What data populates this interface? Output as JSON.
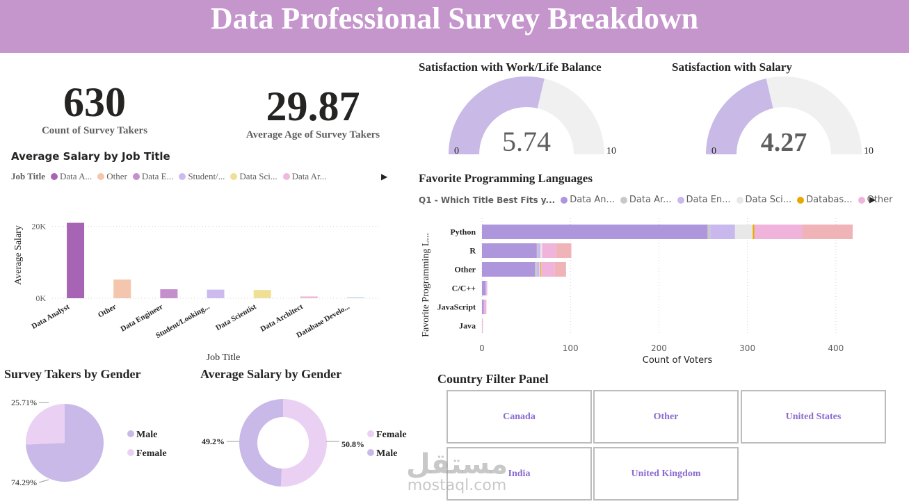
{
  "header": {
    "title": "Data Professional Survey Breakdown"
  },
  "kpis": {
    "count": {
      "value": "630",
      "label": "Count of Survey Takers"
    },
    "age": {
      "value": "29.87",
      "label": "Average Age of Survey Takers"
    }
  },
  "gauges": [
    {
      "title": "Satisfaction with Work/Life Balance",
      "value": 5.74,
      "value_label": "5.74",
      "min": "0",
      "max": "10",
      "fill_fraction": 0.574,
      "fill_color": "#c8b9e6",
      "track_color": "#f0f0f0"
    },
    {
      "title": "Satisfaction with Salary",
      "value": 4.27,
      "value_label": "4.27",
      "min": "0",
      "max": "10",
      "fill_fraction": 0.427,
      "fill_color": "#c8b9e6",
      "track_color": "#f0f0f0"
    }
  ],
  "salary_by_job": {
    "title": "Average Salary by Job Title",
    "legend_title": "Job Title",
    "legend": [
      {
        "label": "Data A...",
        "color": "#a864b4"
      },
      {
        "label": "Other",
        "color": "#f4c6ae"
      },
      {
        "label": "Data E...",
        "color": "#c490cc"
      },
      {
        "label": "Student/...",
        "color": "#cdbbee"
      },
      {
        "label": "Data Sci...",
        "color": "#f0e096"
      },
      {
        "label": "Data Ar...",
        "color": "#f0b8dc"
      }
    ],
    "arrow": "▶"
  },
  "languages": {
    "title": "Favorite Programming Languages",
    "legend_title": "Q1 - Which Title Best Fits y...",
    "legend": [
      {
        "label": "Data An...",
        "color": "#ad96dc"
      },
      {
        "label": "Data Ar...",
        "color": "#c8c8c8"
      },
      {
        "label": "Data En...",
        "color": "#c9b8ee"
      },
      {
        "label": "Data Sci...",
        "color": "#e8e8e8"
      },
      {
        "label": "Databas...",
        "color": "#e8a800"
      },
      {
        "label": "Other",
        "color": "#f0b4dc"
      }
    ],
    "arrow": "▶"
  },
  "gender_count": {
    "title": "Survey Takers by Gender",
    "legend": [
      {
        "label": "Male",
        "color": "#c9b9e8"
      },
      {
        "label": "Female",
        "color": "#ead0f2"
      }
    ]
  },
  "gender_salary": {
    "title": "Average Salary by Gender",
    "legend": [
      {
        "label": "Female",
        "color": "#ead0f2"
      },
      {
        "label": "Male",
        "color": "#c9b9e8"
      }
    ]
  },
  "country_panel": {
    "title": "Country Filter Panel",
    "tiles": [
      "Canada",
      "Other",
      "United States",
      "India",
      "United Kingdom"
    ]
  },
  "watermark": {
    "arabic": "مستقل",
    "latin": "mostaql.com"
  },
  "chart_data": [
    {
      "type": "bar",
      "title": "",
      "xlabel": "Job Title",
      "ylabel": "Average Salary",
      "categories": [
        "Data Analyst",
        "Other",
        "Data Engineer",
        "Student/Looking...",
        "Data Scientist",
        "Data Architect",
        "Database Develo..."
      ],
      "values": [
        21000,
        5200,
        2500,
        2400,
        2300,
        500,
        300
      ],
      "colors": [
        "#a864b4",
        "#f4c6ae",
        "#c490cc",
        "#cdbbee",
        "#f0e096",
        "#f0b8dc",
        "#c8d8ec"
      ],
      "yticks": [
        0,
        20000
      ],
      "ytick_labels": [
        "0K",
        "20K"
      ],
      "ylim": [
        0,
        24000
      ]
    },
    {
      "type": "bar",
      "orientation": "horizontal",
      "stacked": true,
      "title": "",
      "xlabel": "Count of Voters",
      "ylabel": "Favorite Programming L...",
      "categories": [
        "Python",
        "R",
        "Other",
        "C/C++",
        "JavaScript",
        "Java"
      ],
      "series": [
        {
          "name": "Data An...",
          "color": "#ad96dc",
          "values": [
            255,
            62,
            60,
            4,
            2,
            0
          ]
        },
        {
          "name": "Data Ar...",
          "color": "#c8c8c8",
          "values": [
            3,
            1,
            2,
            0,
            0,
            0
          ]
        },
        {
          "name": "Data En...",
          "color": "#c9b8ee",
          "values": [
            28,
            3,
            3,
            1,
            0,
            0
          ]
        },
        {
          "name": "Data Sci...",
          "color": "#e8e8e8",
          "values": [
            20,
            2,
            1,
            0,
            0,
            0
          ]
        },
        {
          "name": "Databas...",
          "color": "#e8a800",
          "values": [
            2,
            0,
            1,
            0,
            0,
            0
          ]
        },
        {
          "name": "Other",
          "color": "#f0b4dc",
          "values": [
            54,
            16,
            15,
            1,
            3,
            1
          ]
        },
        {
          "name": "",
          "color": "#f0b4b8",
          "values": [
            57,
            17,
            13,
            0,
            0,
            0
          ]
        }
      ],
      "xticks": [
        0,
        100,
        200,
        300,
        400
      ],
      "xlim": [
        0,
        430
      ]
    },
    {
      "type": "pie",
      "title": "",
      "labels": [
        "Male",
        "Female"
      ],
      "values": [
        74.29,
        25.71
      ],
      "value_labels": [
        "74.29%",
        "25.71%"
      ],
      "colors": [
        "#c9b9e8",
        "#ead0f2"
      ]
    },
    {
      "type": "pie",
      "donut": true,
      "title": "",
      "labels": [
        "Female",
        "Male"
      ],
      "values": [
        50.8,
        49.2
      ],
      "value_labels": [
        "50.8%",
        "49.2%"
      ],
      "colors": [
        "#ead0f2",
        "#c9b9e8"
      ]
    }
  ]
}
